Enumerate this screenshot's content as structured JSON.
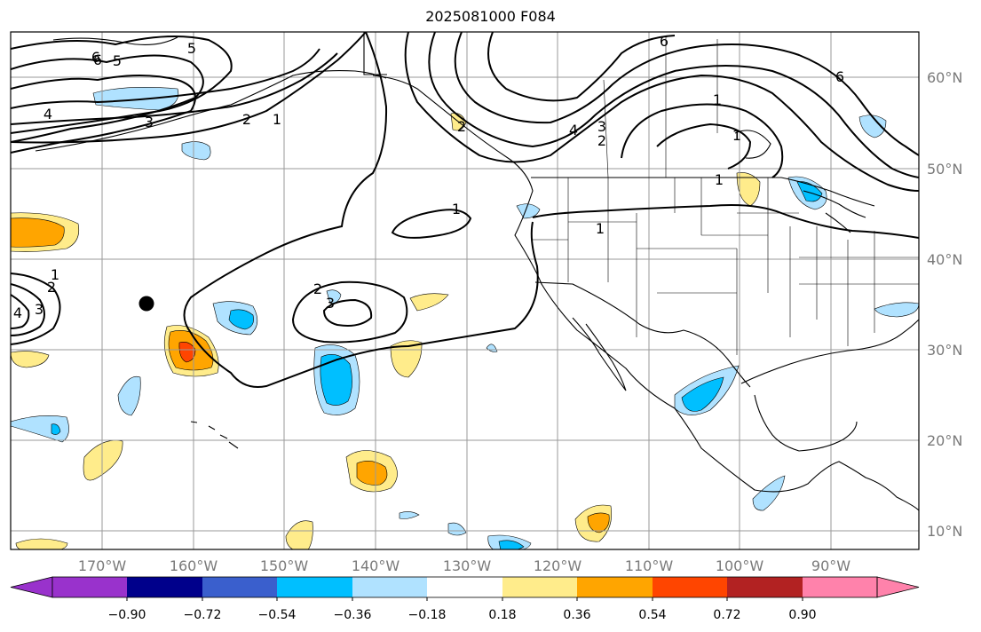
{
  "title": "2025081000 F084",
  "lon_labels": [
    "170°W",
    "160°W",
    "150°W",
    "140°W",
    "130°W",
    "120°W",
    "110°W",
    "100°W",
    "90°W"
  ],
  "lat_labels": [
    "60°N",
    "50°N",
    "40°N",
    "30°N",
    "20°N",
    "10°N"
  ],
  "colorbar": {
    "tick_labels": [
      "−0.90",
      "−0.72",
      "−0.54",
      "−0.36",
      "−0.18",
      "0.18",
      "0.36",
      "0.54",
      "0.72",
      "0.90"
    ],
    "colors": [
      "#9932cc",
      "#00008b",
      "#3a5fcd",
      "#00bfff",
      "#b0e2ff",
      "#ffffff",
      "#ffec8b",
      "#ffa500",
      "#ff4500",
      "#b22222",
      "#ff82ab"
    ]
  },
  "contour_labels": [
    "6",
    "5",
    "4",
    "3",
    "2",
    "1",
    "1",
    "1",
    "2",
    "3",
    "6",
    "4",
    "3",
    "2",
    "1",
    "1",
    "6",
    "5",
    "2",
    "1",
    "4",
    "3",
    "2",
    "1",
    "6"
  ],
  "fill_colors": {
    "light_blue": "#b0e2ff",
    "blue": "#00bfff",
    "yellow": "#ffec8b",
    "orange": "#ffa500",
    "red_orange": "#ff4500"
  },
  "marker": "black-dot"
}
